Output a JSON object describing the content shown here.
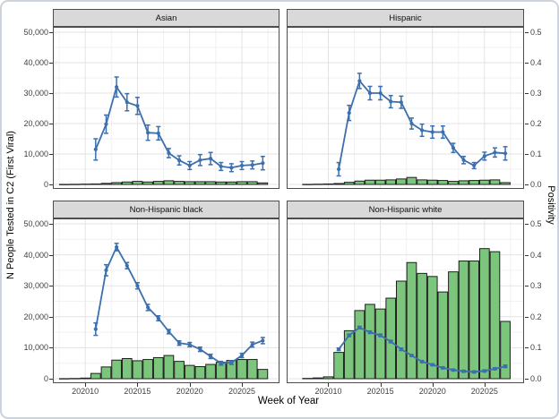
{
  "figure": {
    "x_axis_title": "Week of Year",
    "y_left_axis_title": "N People Tested in C2 (First Viral)",
    "y_right_axis_title": "Positivity",
    "x_ticks": {
      "values": [
        202010,
        202015,
        202020,
        202025
      ],
      "labels": [
        "202010",
        "202015",
        "202020",
        "202025"
      ]
    },
    "y_left_ticks": {
      "values": [
        0,
        10000,
        20000,
        30000,
        40000,
        50000
      ],
      "labels": [
        "0",
        "10,000",
        "20,000",
        "30,000",
        "40,000",
        "50,000"
      ]
    },
    "y_right_ticks": {
      "values": [
        0,
        0.1,
        0.2,
        0.3,
        0.4,
        0.5
      ],
      "labels": [
        "0.0",
        "0.1",
        "0.2",
        "0.3",
        "0.4",
        "0.5"
      ]
    }
  },
  "colors": {
    "bar_fill": "#7cc57c",
    "bar_stroke": "#1f1f1f",
    "line": "#3c6fad",
    "strip_bg": "#d9d9d9",
    "strip_border": "#4d4d4d",
    "panel_border": "#4d4d4d",
    "grid_major": "#e3e3e3",
    "grid_minor": "#f1f1f1",
    "tick_text": "#404040",
    "frame_border": "#ccd3da"
  },
  "chart_data": [
    {
      "panel": "Asian",
      "type": "bar+line",
      "left_ylim": [
        0,
        50000
      ],
      "right_ylim": [
        0,
        0.5
      ],
      "x_weeks_line": [
        202011,
        202012,
        202013,
        202014,
        202015,
        202016,
        202017,
        202018,
        202019,
        202020,
        202021,
        202022,
        202023,
        202024,
        202025,
        202026,
        202027
      ],
      "line_positivity": [
        0.115,
        0.198,
        0.32,
        0.27,
        0.258,
        0.17,
        0.168,
        0.103,
        0.079,
        0.062,
        0.08,
        0.085,
        0.059,
        0.055,
        0.062,
        0.064,
        0.07
      ],
      "line_error": [
        0.035,
        0.03,
        0.033,
        0.028,
        0.028,
        0.025,
        0.022,
        0.015,
        0.015,
        0.013,
        0.018,
        0.02,
        0.013,
        0.013,
        0.013,
        0.013,
        0.022
      ],
      "x_weeks_bars": [
        202008,
        202009,
        202010,
        202011,
        202012,
        202013,
        202014,
        202015,
        202016,
        202017,
        202018,
        202019,
        202020,
        202021,
        202022,
        202023,
        202024,
        202025,
        202026,
        202027
      ],
      "bars_n_tested": [
        20,
        50,
        100,
        150,
        350,
        600,
        800,
        1000,
        800,
        1000,
        1200,
        1000,
        900,
        900,
        900,
        800,
        800,
        900,
        900,
        500
      ]
    },
    {
      "panel": "Hispanic",
      "type": "bar+line",
      "left_ylim": [
        0,
        50000
      ],
      "right_ylim": [
        0,
        0.5
      ],
      "x_weeks_line": [
        202011,
        202012,
        202013,
        202014,
        202015,
        202016,
        202017,
        202018,
        202019,
        202020,
        202021,
        202022,
        202023,
        202024,
        202025,
        202026,
        202027
      ],
      "line_positivity": [
        0.05,
        0.235,
        0.34,
        0.3,
        0.3,
        0.272,
        0.27,
        0.2,
        0.178,
        0.172,
        0.172,
        0.12,
        0.08,
        0.062,
        0.093,
        0.105,
        0.102
      ],
      "line_error": [
        0.022,
        0.025,
        0.025,
        0.022,
        0.022,
        0.02,
        0.02,
        0.018,
        0.02,
        0.02,
        0.02,
        0.015,
        0.012,
        0.01,
        0.013,
        0.015,
        0.022
      ],
      "x_weeks_bars": [
        202008,
        202009,
        202010,
        202011,
        202012,
        202013,
        202014,
        202015,
        202016,
        202017,
        202018,
        202019,
        202020,
        202021,
        202022,
        202023,
        202024,
        202025,
        202026,
        202027
      ],
      "bars_n_tested": [
        30,
        80,
        150,
        300,
        700,
        1100,
        1400,
        1400,
        1500,
        1800,
        2300,
        1500,
        1400,
        1300,
        1000,
        1200,
        1300,
        1400,
        1500,
        600
      ]
    },
    {
      "panel": "Non-Hispanic black",
      "type": "bar+line",
      "left_ylim": [
        0,
        50000
      ],
      "right_ylim": [
        0,
        0.5
      ],
      "x_weeks_line": [
        202011,
        202012,
        202013,
        202014,
        202015,
        202016,
        202017,
        202018,
        202019,
        202020,
        202021,
        202022,
        202023,
        202024,
        202025,
        202026,
        202027
      ],
      "line_positivity": [
        0.16,
        0.35,
        0.425,
        0.365,
        0.3,
        0.23,
        0.195,
        0.152,
        0.115,
        0.11,
        0.095,
        0.072,
        0.05,
        0.052,
        0.075,
        0.11,
        0.123
      ],
      "line_error": [
        0.02,
        0.018,
        0.012,
        0.01,
        0.01,
        0.01,
        0.008,
        0.007,
        0.007,
        0.007,
        0.007,
        0.007,
        0.006,
        0.006,
        0.007,
        0.008,
        0.01
      ],
      "x_weeks_bars": [
        202008,
        202009,
        202010,
        202011,
        202012,
        202013,
        202014,
        202015,
        202016,
        202017,
        202018,
        202019,
        202020,
        202021,
        202022,
        202023,
        202024,
        202025,
        202026,
        202027
      ],
      "bars_n_tested": [
        30,
        80,
        200,
        1700,
        3800,
        6000,
        6500,
        5800,
        6200,
        6800,
        7500,
        5600,
        4300,
        3900,
        4600,
        5300,
        5900,
        6200,
        6200,
        3000
      ]
    },
    {
      "panel": "Non-Hispanic white",
      "type": "bar+line",
      "left_ylim": [
        0,
        50000
      ],
      "right_ylim": [
        0,
        0.5
      ],
      "x_weeks_line": [
        202011,
        202012,
        202013,
        202014,
        202015,
        202016,
        202017,
        202018,
        202019,
        202020,
        202021,
        202022,
        202023,
        202024,
        202025,
        202026,
        202027
      ],
      "line_positivity": [
        0.095,
        0.14,
        0.165,
        0.15,
        0.14,
        0.12,
        0.095,
        0.075,
        0.055,
        0.045,
        0.035,
        0.028,
        0.024,
        0.022,
        0.025,
        0.032,
        0.04
      ],
      "line_error": [
        0.004,
        0.004,
        0.004,
        0.004,
        0.004,
        0.004,
        0.004,
        0.003,
        0.003,
        0.003,
        0.003,
        0.003,
        0.003,
        0.003,
        0.003,
        0.003,
        0.004
      ],
      "x_weeks_bars": [
        202008,
        202009,
        202010,
        202011,
        202012,
        202013,
        202014,
        202015,
        202016,
        202017,
        202018,
        202019,
        202020,
        202021,
        202022,
        202023,
        202024,
        202025,
        202026,
        202027
      ],
      "bars_n_tested": [
        100,
        250,
        600,
        8500,
        15500,
        22000,
        24000,
        22500,
        26000,
        31500,
        37500,
        34000,
        33000,
        28000,
        34500,
        38000,
        38000,
        42000,
        41000,
        18500
      ]
    }
  ]
}
